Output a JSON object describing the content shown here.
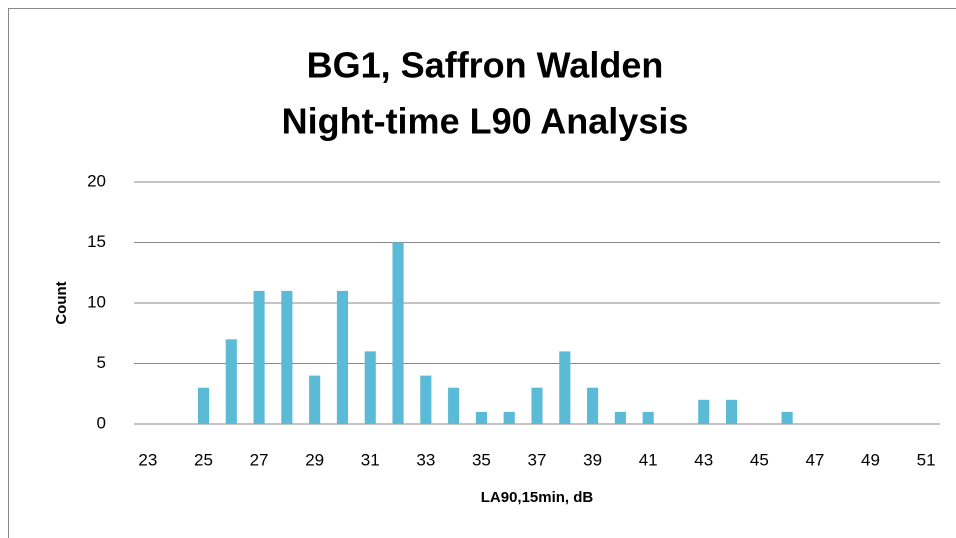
{
  "chart_data": {
    "type": "bar",
    "title": [
      "BG1, Saffron Walden",
      "Night-time L90 Analysis"
    ],
    "x_label": "LA90,15min, dB",
    "y_label": "Count",
    "categories": [
      "23",
      null,
      "25",
      null,
      "27",
      null,
      "29",
      null,
      "31",
      null,
      "33",
      null,
      "35",
      null,
      "37",
      null,
      "39",
      null,
      "41",
      null,
      "43",
      null,
      "45",
      null,
      "47",
      null,
      "49",
      null,
      "51"
    ],
    "values": [
      0,
      0,
      3,
      7,
      11,
      11,
      4,
      11,
      6,
      15,
      4,
      3,
      1,
      1,
      3,
      6,
      3,
      1,
      1,
      0,
      2,
      2,
      0,
      1,
      0,
      0,
      0,
      0,
      0
    ],
    "color": "#5bbad6",
    "ylim": [
      0,
      20
    ],
    "yticks": [
      0,
      5,
      10,
      15,
      20
    ],
    "grid": true
  }
}
